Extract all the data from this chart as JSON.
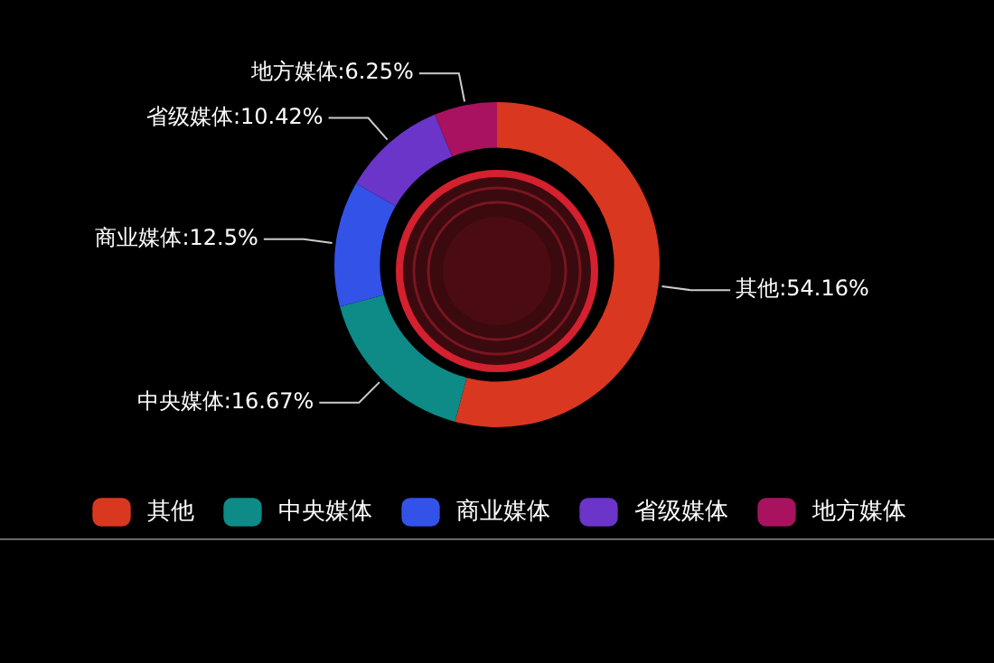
{
  "chart_data": {
    "type": "donut",
    "categories": [
      "其他",
      "中央媒体",
      "商业媒体",
      "省级媒体",
      "地方媒体"
    ],
    "values": [
      54.16,
      16.67,
      12.5,
      10.42,
      6.25
    ],
    "value_labels": [
      "其他:54.16%",
      "中央媒体:16.67%",
      "商业媒体:12.5%",
      "省级媒体:10.42%",
      "地方媒体:6.25%"
    ],
    "colors": [
      "#d9371f",
      "#0e8a87",
      "#3352e8",
      "#6a35c8",
      "#a8125f"
    ],
    "legend": "bottom"
  }
}
